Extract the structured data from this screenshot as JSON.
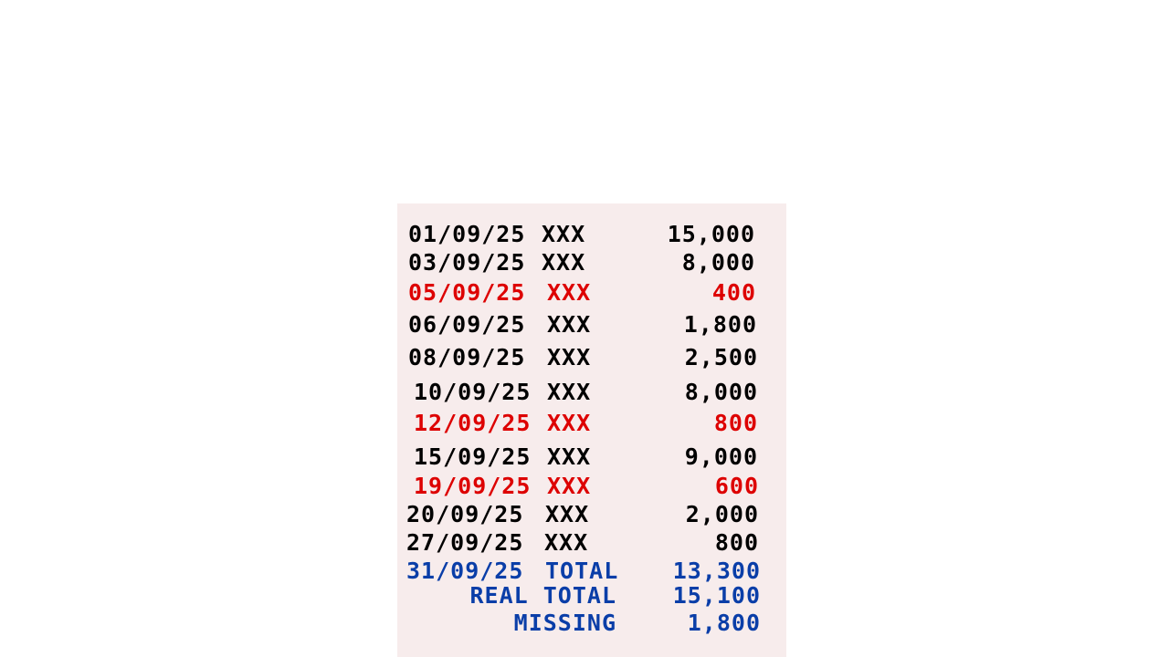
{
  "ledger": {
    "rows": [
      {
        "date": "01/09/25",
        "desc": "XXX",
        "amount": "15,000",
        "color": "#000000"
      },
      {
        "date": "03/09/25",
        "desc": "XXX",
        "amount": "8,000",
        "color": "#000000"
      },
      {
        "date": "05/09/25",
        "desc": "XXX",
        "amount": "400",
        "color": "#dd0000"
      },
      {
        "date": "06/09/25",
        "desc": "XXX",
        "amount": "1,800",
        "color": "#000000"
      },
      {
        "date": "08/09/25",
        "desc": "XXX",
        "amount": "2,500",
        "color": "#000000"
      },
      {
        "date": "10/09/25",
        "desc": "XXX",
        "amount": "8,000",
        "color": "#000000"
      },
      {
        "date": "12/09/25",
        "desc": "XXX",
        "amount": "800",
        "color": "#dd0000"
      },
      {
        "date": "15/09/25",
        "desc": "XXX",
        "amount": "9,000",
        "color": "#000000"
      },
      {
        "date": "19/09/25",
        "desc": "XXX",
        "amount": "600",
        "color": "#dd0000"
      },
      {
        "date": "20/09/25",
        "desc": "XXX",
        "amount": "2,000",
        "color": "#000000"
      },
      {
        "date": "27/09/25",
        "desc": "XXX",
        "amount": "800",
        "color": "#000000"
      }
    ],
    "total_row": {
      "date": "31/09/25",
      "label": "TOTAL",
      "amount": "13,300"
    },
    "real_total": {
      "label": "REAL TOTAL",
      "amount": "15,100"
    },
    "missing": {
      "label": "MISSING",
      "amount": "1,800"
    },
    "colors": {
      "background": "#f7ecec",
      "normal": "#000000",
      "highlight": "#dd0000",
      "summary": "#0a3ea8"
    }
  }
}
